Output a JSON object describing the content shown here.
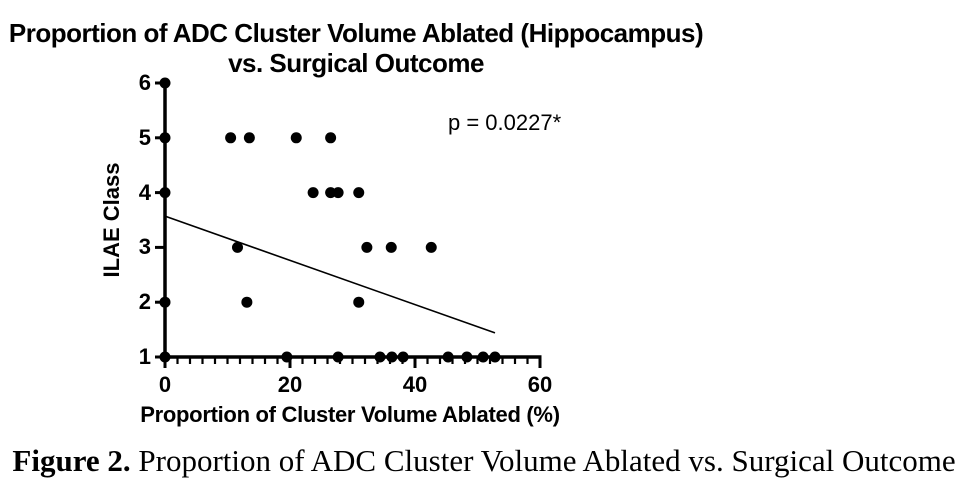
{
  "chart": {
    "title_line1": "Proportion of ADC Cluster Volume Ablated (Hippocampus)",
    "title_line2": "vs. Surgical Outcome",
    "p_value": "p = 0.0227*",
    "ylabel": "ILAE Class",
    "xlabel": "Proportion of Cluster Volume Ablated (%)"
  },
  "caption": {
    "label": "Figure 2.",
    "text": " Proportion of ADC Cluster Volume Ablated vs. Surgical Outcome"
  },
  "chart_data": {
    "type": "scatter",
    "title": "Proportion of ADC Cluster Volume Ablated (Hippocampus) vs. Surgical Outcome",
    "xlabel": "Proportion of Cluster Volume Ablated (%)",
    "ylabel": "ILAE Class",
    "xlim": [
      0,
      60
    ],
    "ylim": [
      1,
      6
    ],
    "x_major_ticks": [
      0,
      20,
      40,
      60
    ],
    "x_minor_tick_step": 2,
    "y_ticks": [
      1,
      2,
      3,
      4,
      5,
      6
    ],
    "grid": false,
    "legend": "none",
    "marker_color": "#000000",
    "annotation": "p = 0.0227*",
    "points": [
      [
        0,
        6
      ],
      [
        0,
        5
      ],
      [
        10.5,
        5
      ],
      [
        13.5,
        5
      ],
      [
        21,
        5
      ],
      [
        26.5,
        5
      ],
      [
        0,
        4
      ],
      [
        23.7,
        4
      ],
      [
        26.5,
        4
      ],
      [
        27.7,
        4
      ],
      [
        31,
        4
      ],
      [
        11.6,
        3
      ],
      [
        32.3,
        3
      ],
      [
        36.2,
        3
      ],
      [
        42.6,
        3
      ],
      [
        0,
        2
      ],
      [
        13.1,
        2
      ],
      [
        31,
        2
      ],
      [
        0,
        1
      ],
      [
        19.5,
        1
      ],
      [
        27.7,
        1
      ],
      [
        34.4,
        1
      ],
      [
        36.3,
        1
      ],
      [
        38.1,
        1
      ],
      [
        45.3,
        1
      ],
      [
        48.3,
        1
      ],
      [
        50.9,
        1
      ],
      [
        52.8,
        1
      ]
    ],
    "trend_line": {
      "x1": 0,
      "y1": 3.57,
      "x2": 52.8,
      "y2": 1.44
    }
  }
}
